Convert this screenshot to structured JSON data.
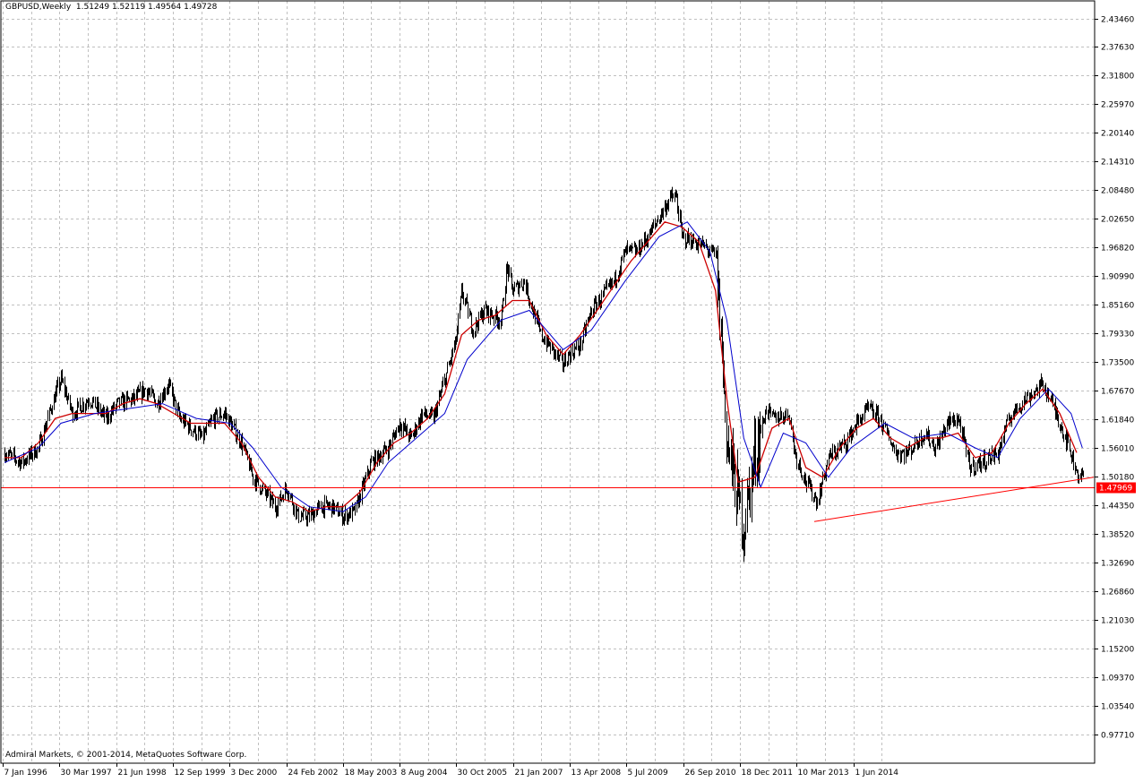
{
  "header": {
    "symbol": "GBPUSD,Weekly",
    "ohlc": "1.51249 1.52119 1.49564 1.49728"
  },
  "copyright": "Admiral Markets, © 2001-2014, MetaQuotes Software Corp.",
  "price_marker": {
    "value": "1.47969",
    "bg": "#ff0000",
    "fg": "#ffffff"
  },
  "colors": {
    "bars": "#000000",
    "ma_red": "#cc0000",
    "ma_blue": "#0000cc",
    "hline": "#ff0000",
    "trend": "#ff0000",
    "grid": "#c0c0c0"
  },
  "chart_data": {
    "type": "line",
    "title": "GBPUSD,Weekly",
    "grid": true,
    "ylim": [
      0.94,
      2.465
    ],
    "y_ticks": [
      "2.43460",
      "2.37630",
      "2.31800",
      "2.25970",
      "2.20140",
      "2.14310",
      "2.08480",
      "2.02650",
      "1.96820",
      "1.90990",
      "1.85160",
      "1.79330",
      "1.73500",
      "1.67670",
      "1.61840",
      "1.56010",
      "1.50180",
      "1.44350",
      "1.38520",
      "1.32690",
      "1.26860",
      "1.21030",
      "1.15200",
      "1.09370",
      "1.03540",
      "0.97710"
    ],
    "x_ticks": [
      "7 Jan 1996",
      "30 Mar 1997",
      "21 Jun 1998",
      "12 Sep 1999",
      "3 Dec 2000",
      "24 Feb 2002",
      "18 May 2003",
      "8 Aug 2004",
      "30 Oct 2005",
      "21 Jan 2007",
      "13 Apr 2008",
      "5 Jul 2009",
      "26 Sep 2010",
      "18 Dec 2011",
      "10 Mar 2013",
      "1 Jun 2014"
    ],
    "xlim": [
      1996.0,
      2016.0
    ],
    "series": [
      {
        "values": [
          [
            1996.0,
            1.55
          ],
          [
            1996.3,
            1.53
          ],
          [
            1996.6,
            1.56
          ],
          [
            1996.9,
            1.67
          ],
          [
            1997.0,
            1.7
          ],
          [
            1997.2,
            1.63
          ],
          [
            1997.5,
            1.66
          ],
          [
            1997.8,
            1.62
          ],
          [
            1998.0,
            1.65
          ],
          [
            1998.3,
            1.66
          ],
          [
            1998.5,
            1.68
          ],
          [
            1998.7,
            1.65
          ],
          [
            1998.9,
            1.69
          ],
          [
            1999.1,
            1.62
          ],
          [
            1999.3,
            1.6
          ],
          [
            1999.5,
            1.58
          ],
          [
            1999.7,
            1.62
          ],
          [
            1999.9,
            1.63
          ],
          [
            2000.0,
            1.61
          ],
          [
            2000.2,
            1.57
          ],
          [
            2000.4,
            1.5
          ],
          [
            2000.6,
            1.47
          ],
          [
            2000.8,
            1.44
          ],
          [
            2001.0,
            1.48
          ],
          [
            2001.2,
            1.42
          ],
          [
            2001.4,
            1.42
          ],
          [
            2001.6,
            1.44
          ],
          [
            2001.8,
            1.44
          ],
          [
            2002.0,
            1.42
          ],
          [
            2002.2,
            1.43
          ],
          [
            2002.5,
            1.53
          ],
          [
            2002.8,
            1.56
          ],
          [
            2003.0,
            1.61
          ],
          [
            2003.2,
            1.58
          ],
          [
            2003.4,
            1.63
          ],
          [
            2003.6,
            1.62
          ],
          [
            2003.8,
            1.7
          ],
          [
            2004.0,
            1.78
          ],
          [
            2004.1,
            1.88
          ],
          [
            2004.3,
            1.8
          ],
          [
            2004.5,
            1.84
          ],
          [
            2004.8,
            1.82
          ],
          [
            2004.9,
            1.93
          ],
          [
            2005.0,
            1.88
          ],
          [
            2005.2,
            1.9
          ],
          [
            2005.5,
            1.79
          ],
          [
            2005.7,
            1.76
          ],
          [
            2005.9,
            1.73
          ],
          [
            2006.0,
            1.75
          ],
          [
            2006.2,
            1.77
          ],
          [
            2006.4,
            1.84
          ],
          [
            2006.6,
            1.87
          ],
          [
            2006.8,
            1.9
          ],
          [
            2007.0,
            1.96
          ],
          [
            2007.2,
            1.96
          ],
          [
            2007.4,
            1.99
          ],
          [
            2007.6,
            2.03
          ],
          [
            2007.8,
            2.07
          ],
          [
            2007.9,
            2.07
          ],
          [
            2008.0,
            1.99
          ],
          [
            2008.2,
            1.98
          ],
          [
            2008.4,
            1.97
          ],
          [
            2008.6,
            1.95
          ],
          [
            2008.7,
            1.78
          ],
          [
            2008.8,
            1.57
          ],
          [
            2009.0,
            1.45
          ],
          [
            2009.1,
            1.4
          ],
          [
            2009.3,
            1.55
          ],
          [
            2009.5,
            1.64
          ],
          [
            2009.6,
            1.62
          ],
          [
            2009.9,
            1.63
          ],
          [
            2010.0,
            1.55
          ],
          [
            2010.2,
            1.49
          ],
          [
            2010.4,
            1.45
          ],
          [
            2010.6,
            1.54
          ],
          [
            2010.9,
            1.57
          ],
          [
            2011.1,
            1.61
          ],
          [
            2011.3,
            1.64
          ],
          [
            2011.5,
            1.62
          ],
          [
            2011.8,
            1.55
          ],
          [
            2012.0,
            1.55
          ],
          [
            2012.3,
            1.59
          ],
          [
            2012.5,
            1.56
          ],
          [
            2012.7,
            1.61
          ],
          [
            2012.9,
            1.62
          ],
          [
            2013.1,
            1.52
          ],
          [
            2013.3,
            1.53
          ],
          [
            2013.6,
            1.55
          ],
          [
            2013.8,
            1.62
          ],
          [
            2014.0,
            1.65
          ],
          [
            2014.2,
            1.67
          ],
          [
            2014.4,
            1.69
          ],
          [
            2014.6,
            1.64
          ],
          [
            2014.8,
            1.58
          ],
          [
            2015.0,
            1.51
          ],
          [
            2015.1,
            1.5
          ]
        ]
      },
      {
        "values": [
          [
            1996.0,
            1.54
          ],
          [
            1996.3,
            1.54
          ],
          [
            1996.6,
            1.57
          ],
          [
            1996.9,
            1.62
          ],
          [
            1997.2,
            1.63
          ],
          [
            1997.5,
            1.63
          ],
          [
            1997.8,
            1.63
          ],
          [
            1998.1,
            1.65
          ],
          [
            1998.4,
            1.66
          ],
          [
            1998.7,
            1.65
          ],
          [
            1999.0,
            1.63
          ],
          [
            1999.3,
            1.61
          ],
          [
            1999.6,
            1.61
          ],
          [
            1999.9,
            1.61
          ],
          [
            2000.2,
            1.57
          ],
          [
            2000.5,
            1.5
          ],
          [
            2000.8,
            1.46
          ],
          [
            2001.1,
            1.45
          ],
          [
            2001.4,
            1.43
          ],
          [
            2001.7,
            1.44
          ],
          [
            2002.0,
            1.44
          ],
          [
            2002.3,
            1.47
          ],
          [
            2002.6,
            1.53
          ],
          [
            2002.9,
            1.57
          ],
          [
            2003.2,
            1.59
          ],
          [
            2003.5,
            1.62
          ],
          [
            2003.8,
            1.67
          ],
          [
            2004.1,
            1.79
          ],
          [
            2004.4,
            1.82
          ],
          [
            2004.7,
            1.83
          ],
          [
            2005.0,
            1.86
          ],
          [
            2005.3,
            1.86
          ],
          [
            2005.6,
            1.79
          ],
          [
            2005.9,
            1.75
          ],
          [
            2006.2,
            1.79
          ],
          [
            2006.5,
            1.84
          ],
          [
            2006.8,
            1.89
          ],
          [
            2007.1,
            1.94
          ],
          [
            2007.4,
            1.98
          ],
          [
            2007.7,
            2.02
          ],
          [
            2008.0,
            2.01
          ],
          [
            2008.3,
            1.98
          ],
          [
            2008.6,
            1.88
          ],
          [
            2008.8,
            1.66
          ],
          [
            2009.0,
            1.49
          ],
          [
            2009.3,
            1.5
          ],
          [
            2009.6,
            1.6
          ],
          [
            2009.9,
            1.62
          ],
          [
            2010.2,
            1.52
          ],
          [
            2010.5,
            1.5
          ],
          [
            2010.8,
            1.56
          ],
          [
            2011.1,
            1.6
          ],
          [
            2011.4,
            1.62
          ],
          [
            2011.7,
            1.58
          ],
          [
            2012.0,
            1.56
          ],
          [
            2012.3,
            1.58
          ],
          [
            2012.6,
            1.58
          ],
          [
            2012.9,
            1.59
          ],
          [
            2013.2,
            1.54
          ],
          [
            2013.5,
            1.55
          ],
          [
            2013.8,
            1.61
          ],
          [
            2014.1,
            1.65
          ],
          [
            2014.4,
            1.68
          ],
          [
            2014.7,
            1.63
          ],
          [
            2015.0,
            1.55
          ]
        ]
      },
      {
        "values": [
          [
            1996.0,
            1.53
          ],
          [
            1996.6,
            1.56
          ],
          [
            1997.0,
            1.61
          ],
          [
            1997.6,
            1.63
          ],
          [
            1998.2,
            1.64
          ],
          [
            1998.8,
            1.65
          ],
          [
            1999.4,
            1.62
          ],
          [
            2000.0,
            1.61
          ],
          [
            2000.4,
            1.56
          ],
          [
            2000.9,
            1.48
          ],
          [
            2001.4,
            1.44
          ],
          [
            2002.0,
            1.43
          ],
          [
            2002.4,
            1.46
          ],
          [
            2002.8,
            1.53
          ],
          [
            2003.3,
            1.58
          ],
          [
            2003.8,
            1.63
          ],
          [
            2004.2,
            1.74
          ],
          [
            2004.8,
            1.82
          ],
          [
            2005.3,
            1.84
          ],
          [
            2005.9,
            1.76
          ],
          [
            2006.4,
            1.8
          ],
          [
            2007.0,
            1.9
          ],
          [
            2007.6,
            1.99
          ],
          [
            2008.1,
            2.02
          ],
          [
            2008.5,
            1.96
          ],
          [
            2008.8,
            1.82
          ],
          [
            2009.1,
            1.58
          ],
          [
            2009.4,
            1.48
          ],
          [
            2009.8,
            1.59
          ],
          [
            2010.2,
            1.57
          ],
          [
            2010.6,
            1.5
          ],
          [
            2011.0,
            1.56
          ],
          [
            2011.6,
            1.61
          ],
          [
            2012.1,
            1.58
          ],
          [
            2012.7,
            1.59
          ],
          [
            2013.2,
            1.56
          ],
          [
            2013.6,
            1.54
          ],
          [
            2014.0,
            1.62
          ],
          [
            2014.5,
            1.68
          ],
          [
            2014.9,
            1.63
          ],
          [
            2015.1,
            1.56
          ]
        ]
      }
    ],
    "hline": 1.47969,
    "trendline": {
      "from": [
        2010.35,
        1.41
      ],
      "to": [
        2015.3,
        1.5
      ]
    }
  }
}
